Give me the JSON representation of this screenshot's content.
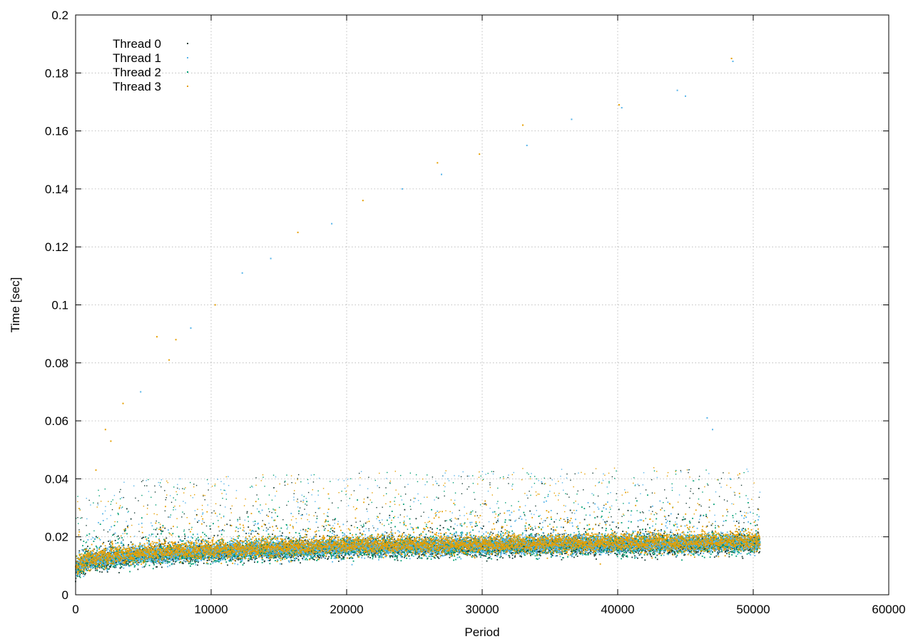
{
  "chart_data": {
    "type": "scatter",
    "title": "",
    "xlabel": "Period",
    "ylabel": "Time [sec]",
    "xlim": [
      0,
      60000
    ],
    "ylim": [
      0,
      0.2
    ],
    "grid": true,
    "legend_position": "top-left",
    "x_ticks": [
      0,
      10000,
      20000,
      30000,
      40000,
      50000,
      60000
    ],
    "x_tick_labels": [
      "0",
      "10000",
      "20000",
      "30000",
      "40000",
      "50000",
      "60000"
    ],
    "y_ticks": [
      0,
      0.02,
      0.04,
      0.06,
      0.08,
      0.1,
      0.12,
      0.14,
      0.16,
      0.18,
      0.2
    ],
    "y_tick_labels": [
      "0",
      "0.02",
      "0.04",
      "0.06",
      "0.08",
      "0.1",
      "0.12",
      "0.14",
      "0.16",
      "0.18",
      "0.2"
    ],
    "series": [
      {
        "name": "Thread 0",
        "color": "#1a3d36",
        "baseline": [
          [
            0,
            0.009
          ],
          [
            1000,
            0.0115
          ],
          [
            5000,
            0.0135
          ],
          [
            10000,
            0.0145
          ],
          [
            20000,
            0.016
          ],
          [
            30000,
            0.0165
          ],
          [
            40000,
            0.017
          ],
          [
            50500,
            0.0175
          ]
        ],
        "x_range": [
          0,
          50500
        ]
      },
      {
        "name": "Thread 1",
        "color": "#56b4e9",
        "baseline": [
          [
            0,
            0.009
          ],
          [
            1000,
            0.012
          ],
          [
            5000,
            0.014
          ],
          [
            10000,
            0.015
          ],
          [
            20000,
            0.0165
          ],
          [
            30000,
            0.017
          ],
          [
            40000,
            0.0175
          ],
          [
            50500,
            0.018
          ]
        ],
        "x_range": [
          0,
          50500
        ],
        "outliers": [
          [
            4800,
            0.07
          ],
          [
            8500,
            0.092
          ],
          [
            12300,
            0.111
          ],
          [
            14400,
            0.116
          ],
          [
            18900,
            0.128
          ],
          [
            24100,
            0.14
          ],
          [
            27000,
            0.145
          ],
          [
            33300,
            0.155
          ],
          [
            36600,
            0.164
          ],
          [
            40300,
            0.168
          ],
          [
            44400,
            0.174
          ],
          [
            48500,
            0.184
          ],
          [
            45000,
            0.172
          ],
          [
            46600,
            0.061
          ],
          [
            47000,
            0.057
          ],
          [
            48300,
            0.04
          ]
        ]
      },
      {
        "name": "Thread 2",
        "color": "#009e73",
        "baseline": [
          [
            0,
            0.009
          ],
          [
            1000,
            0.0118
          ],
          [
            5000,
            0.0138
          ],
          [
            10000,
            0.0148
          ],
          [
            20000,
            0.0162
          ],
          [
            30000,
            0.0168
          ],
          [
            40000,
            0.0172
          ],
          [
            50500,
            0.0178
          ]
        ],
        "x_range": [
          0,
          50500
        ]
      },
      {
        "name": "Thread 3",
        "color": "#e69f00",
        "baseline": [
          [
            0,
            0.01
          ],
          [
            1000,
            0.0125
          ],
          [
            5000,
            0.0145
          ],
          [
            10000,
            0.0155
          ],
          [
            20000,
            0.017
          ],
          [
            30000,
            0.0175
          ],
          [
            40000,
            0.018
          ],
          [
            50500,
            0.0185
          ]
        ],
        "x_range": [
          0,
          50500
        ],
        "outliers": [
          [
            1500,
            0.043
          ],
          [
            2200,
            0.057
          ],
          [
            3500,
            0.066
          ],
          [
            6000,
            0.089
          ],
          [
            7400,
            0.088
          ],
          [
            10300,
            0.1
          ],
          [
            16400,
            0.125
          ],
          [
            21200,
            0.136
          ],
          [
            26700,
            0.149
          ],
          [
            29800,
            0.152
          ],
          [
            33000,
            0.162
          ],
          [
            40100,
            0.169
          ],
          [
            48400,
            0.185
          ],
          [
            2600,
            0.053
          ],
          [
            6900,
            0.081
          ]
        ]
      }
    ]
  }
}
